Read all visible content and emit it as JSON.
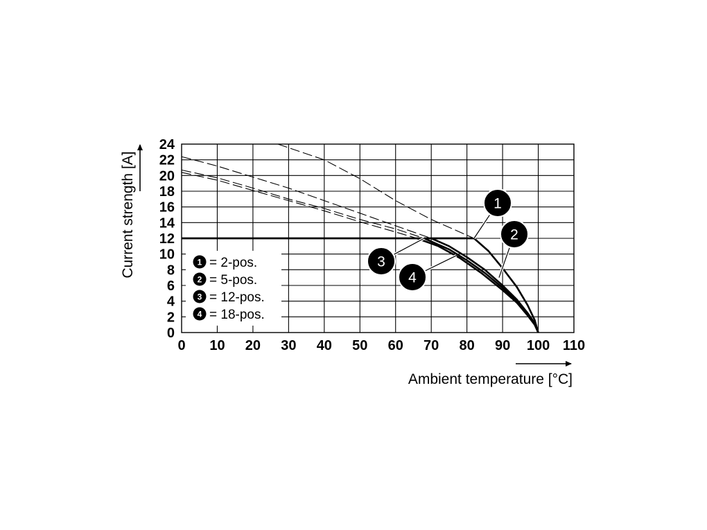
{
  "chart_data": {
    "type": "line",
    "xlabel": "Ambient temperature [°C]",
    "ylabel": "Current strength [A]",
    "xlim": [
      0,
      110
    ],
    "ylim": [
      0,
      24
    ],
    "x_ticks": [
      "0",
      "10",
      "20",
      "30",
      "40",
      "50",
      "60",
      "70",
      "80",
      "90",
      "100",
      "110"
    ],
    "y_ticks": [
      "0",
      "2",
      "4",
      "6",
      "8",
      "10",
      "12",
      "14",
      "16",
      "18",
      "20",
      "22",
      "24"
    ],
    "grid": true,
    "legend_position": "bottom-left",
    "rated_current": {
      "value": 12,
      "x_start": 0
    },
    "series": [
      {
        "name": "2-pos.",
        "badge": "1",
        "legend_text": "= 2-pos.",
        "solid": [
          [
            82,
            12
          ],
          [
            86,
            10.4
          ],
          [
            90,
            8.2
          ],
          [
            94,
            5.8
          ],
          [
            97,
            3.5
          ],
          [
            99,
            1.6
          ],
          [
            100,
            0
          ]
        ],
        "dashed": [
          [
            27,
            24
          ],
          [
            40,
            22
          ],
          [
            50,
            19.6
          ],
          [
            60,
            16.8
          ],
          [
            70,
            14.4
          ],
          [
            82,
            12
          ]
        ]
      },
      {
        "name": "5-pos.",
        "badge": "2",
        "legend_text": "= 5-pos.",
        "solid": [
          [
            70,
            12
          ],
          [
            75,
            11
          ],
          [
            80,
            9.6
          ],
          [
            85,
            8
          ],
          [
            90,
            6
          ],
          [
            94,
            4.2
          ],
          [
            97,
            2.5
          ],
          [
            99,
            1.2
          ],
          [
            100,
            0
          ]
        ],
        "dashed": [
          [
            0,
            22.4
          ],
          [
            10,
            21.2
          ],
          [
            20,
            19.8
          ],
          [
            30,
            18.4
          ],
          [
            40,
            16.8
          ],
          [
            50,
            15.2
          ],
          [
            60,
            13.6
          ],
          [
            70,
            12
          ]
        ]
      },
      {
        "name": "12-pos.",
        "badge": "3",
        "legend_text": "= 12-pos.",
        "solid": [
          [
            68,
            12
          ],
          [
            75,
            10.6
          ],
          [
            80,
            9.2
          ],
          [
            85,
            7.6
          ],
          [
            90,
            5.7
          ],
          [
            94,
            4
          ],
          [
            97,
            2.4
          ],
          [
            99,
            1.1
          ],
          [
            100,
            0
          ]
        ],
        "dashed": [
          [
            0,
            20.7
          ],
          [
            10,
            19.7
          ],
          [
            20,
            18.4
          ],
          [
            30,
            17
          ],
          [
            40,
            15.8
          ],
          [
            50,
            14.4
          ],
          [
            60,
            13.2
          ],
          [
            68,
            12
          ]
        ]
      },
      {
        "name": "18-pos.",
        "badge": "4",
        "legend_text": "= 18-pos.",
        "solid": [
          [
            66,
            12
          ],
          [
            72,
            11
          ],
          [
            78,
            9.5
          ],
          [
            84,
            7.6
          ],
          [
            90,
            5.4
          ],
          [
            94,
            3.8
          ],
          [
            97,
            2.2
          ],
          [
            99,
            1
          ],
          [
            100,
            0
          ]
        ],
        "dashed": [
          [
            0,
            20.4
          ],
          [
            10,
            19.4
          ],
          [
            20,
            18.1
          ],
          [
            30,
            16.8
          ],
          [
            40,
            15.5
          ],
          [
            50,
            14.1
          ],
          [
            60,
            12.8
          ],
          [
            66,
            12
          ]
        ]
      }
    ],
    "callouts": [
      {
        "badge": "1",
        "point": [
          82,
          12
        ]
      },
      {
        "badge": "2",
        "point": [
          89,
          7
        ]
      },
      {
        "badge": "3",
        "point": [
          68,
          12
        ]
      },
      {
        "badge": "4",
        "point": [
          77,
          9.8
        ]
      }
    ]
  }
}
